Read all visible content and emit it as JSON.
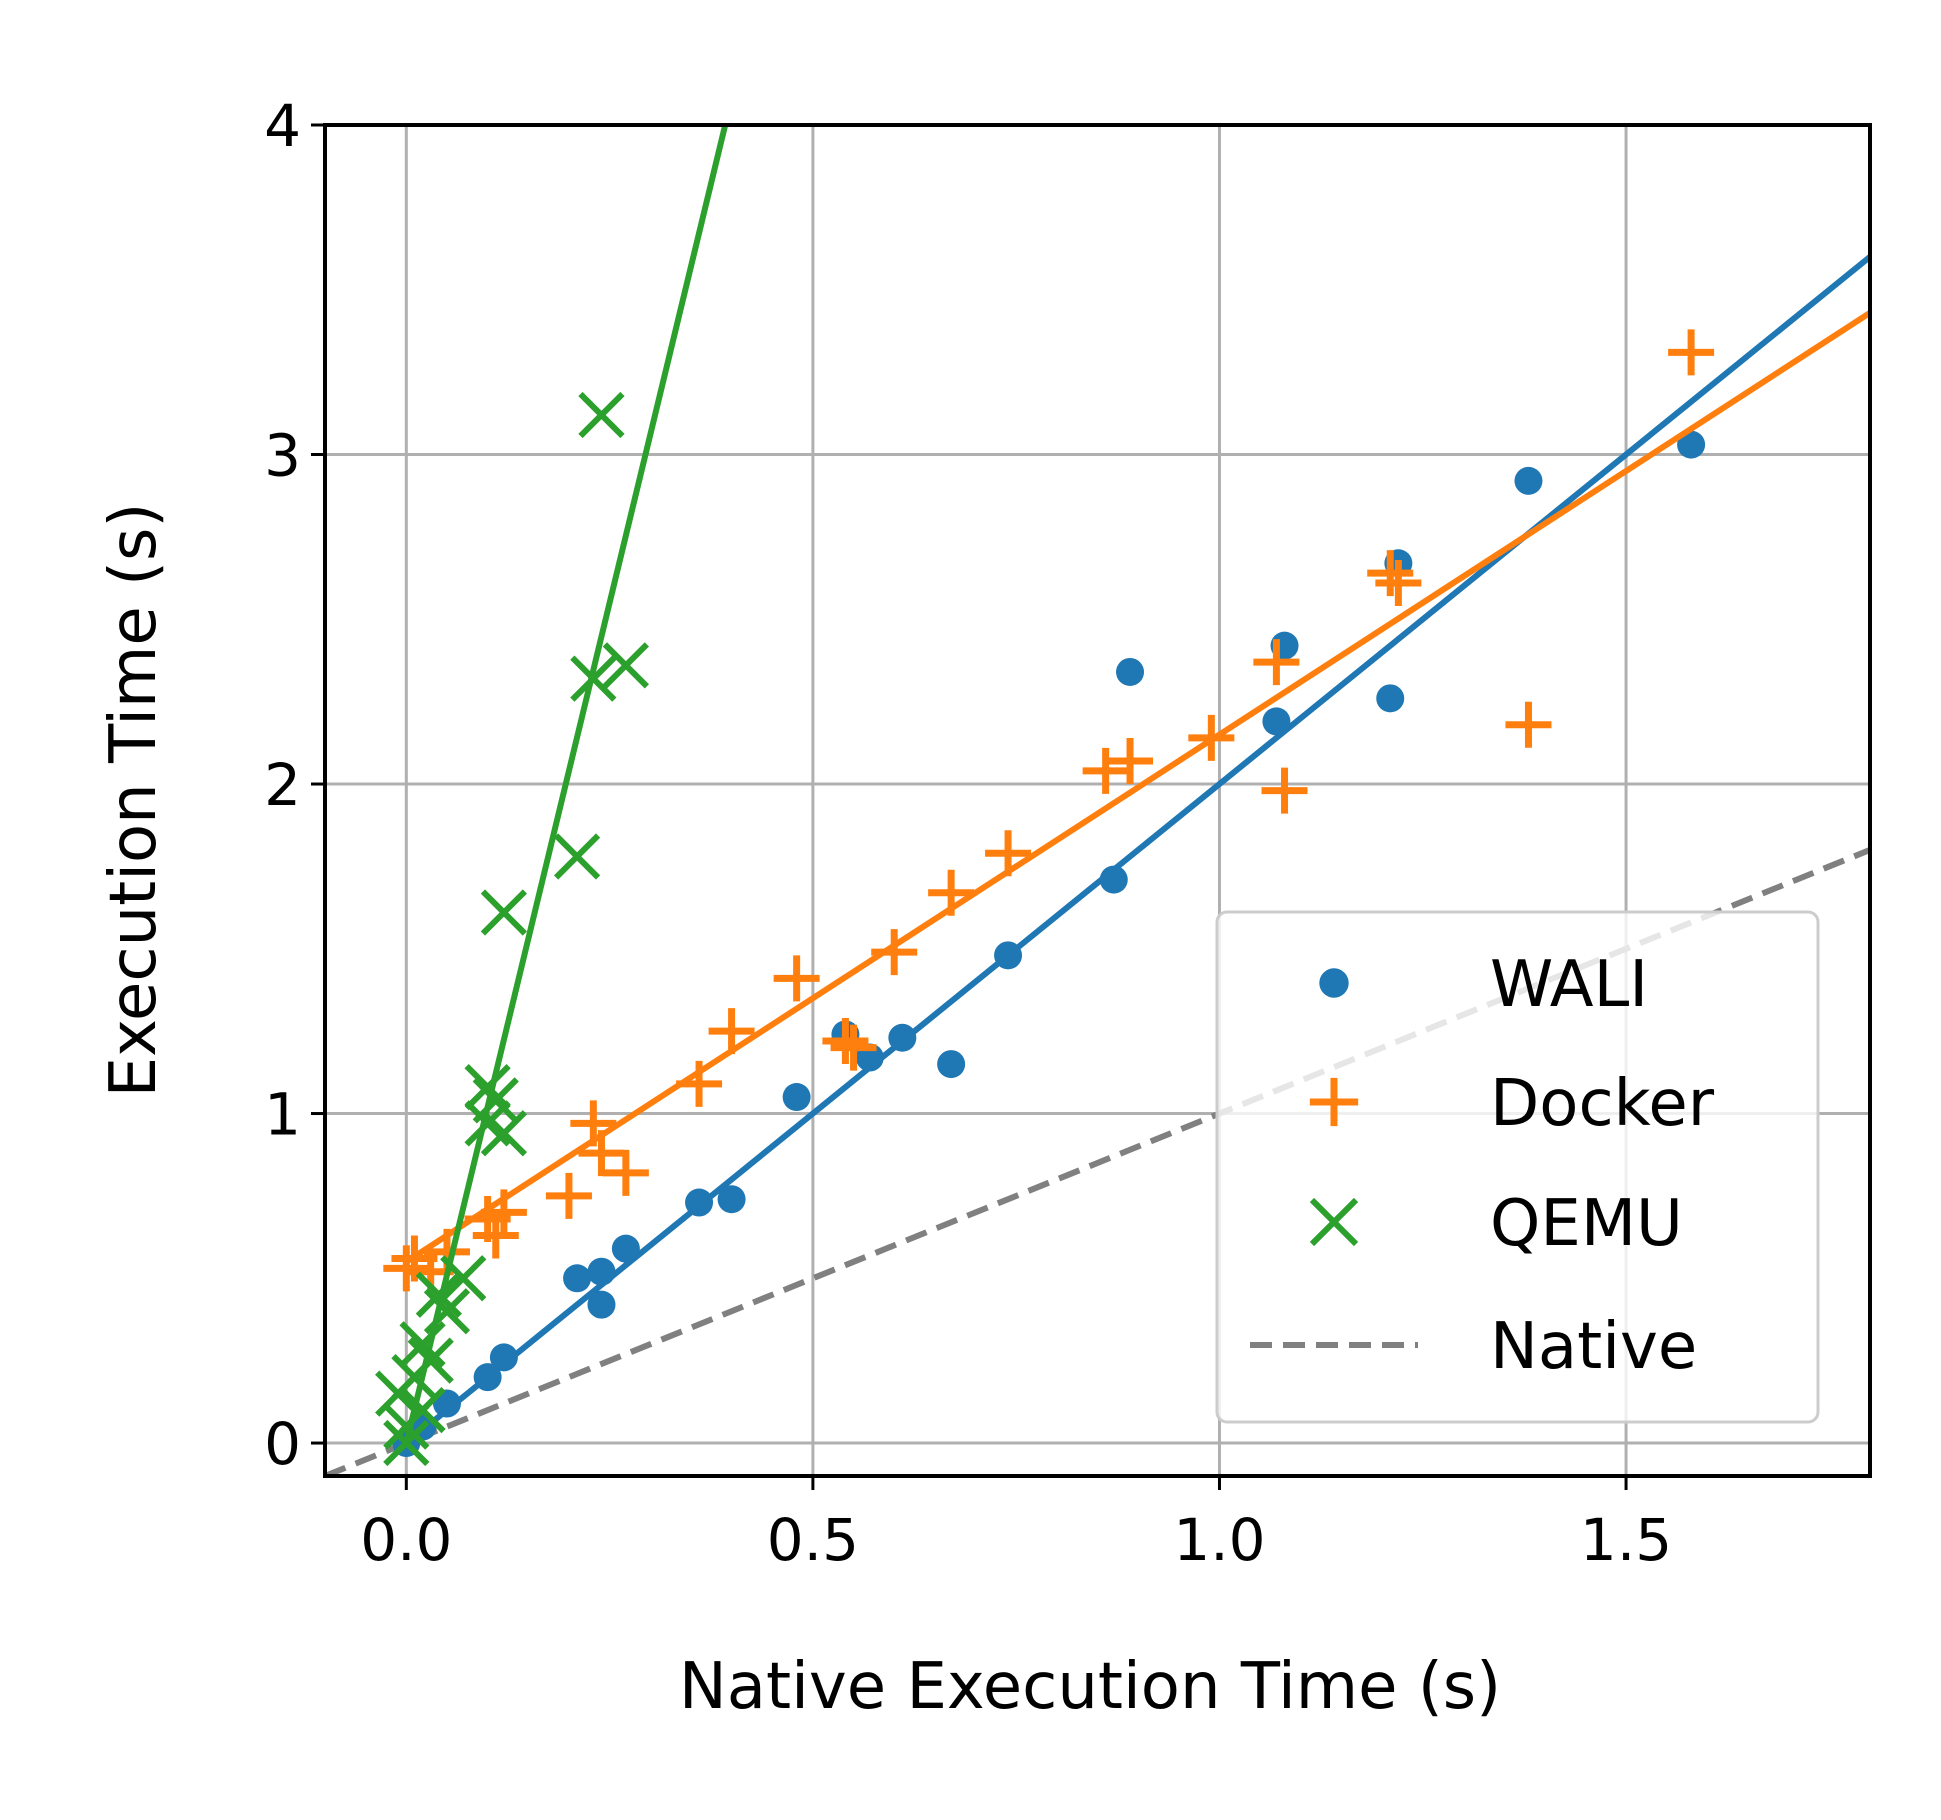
{
  "chart_data": {
    "type": "scatter",
    "xlabel": "Native Execution Time (s)",
    "ylabel": "Execution Time (s)",
    "xlim": [
      -0.1,
      1.8
    ],
    "ylim": [
      -0.1,
      4.0
    ],
    "x_ticks": [
      0.0,
      0.5,
      1.0,
      1.5
    ],
    "x_tick_labels": [
      "0.0",
      "0.5",
      "1.0",
      "1.5"
    ],
    "y_ticks": [
      0,
      1,
      2,
      3,
      4
    ],
    "y_tick_labels": [
      "0",
      "1",
      "2",
      "3",
      "4"
    ],
    "grid": true,
    "legend_position": "bottom-right",
    "colors": {
      "WALI": "#1f77b4",
      "Docker": "#ff7f0e",
      "QEMU": "#2ca02c",
      "Native": "#808080"
    },
    "series": [
      {
        "name": "WALI",
        "marker": "dot",
        "fit": {
          "slope": 2.0,
          "intercept": 0.0
        },
        "points": [
          [
            0.0,
            0.0
          ],
          [
            0.02,
            0.05
          ],
          [
            0.05,
            0.12
          ],
          [
            0.1,
            0.2
          ],
          [
            0.12,
            0.26
          ],
          [
            0.21,
            0.5
          ],
          [
            0.24,
            0.52
          ],
          [
            0.24,
            0.42
          ],
          [
            0.27,
            0.59
          ],
          [
            0.36,
            0.73
          ],
          [
            0.4,
            0.74
          ],
          [
            0.48,
            1.05
          ],
          [
            0.54,
            1.24
          ],
          [
            0.57,
            1.17
          ],
          [
            0.61,
            1.23
          ],
          [
            0.67,
            1.15
          ],
          [
            0.74,
            1.48
          ],
          [
            0.87,
            1.71
          ],
          [
            0.89,
            2.34
          ],
          [
            1.08,
            2.42
          ],
          [
            1.07,
            2.19
          ],
          [
            1.21,
            2.26
          ],
          [
            1.22,
            2.67
          ],
          [
            1.38,
            2.92
          ],
          [
            1.58,
            3.03
          ]
        ]
      },
      {
        "name": "Docker",
        "marker": "plus",
        "fit": {
          "slope": 1.6,
          "intercept": 0.55
        },
        "points": [
          [
            0.0,
            0.53
          ],
          [
            0.01,
            0.56
          ],
          [
            0.03,
            0.52
          ],
          [
            0.05,
            0.58
          ],
          [
            0.1,
            0.68
          ],
          [
            0.11,
            0.63
          ],
          [
            0.12,
            0.7
          ],
          [
            0.2,
            0.75
          ],
          [
            0.23,
            0.97
          ],
          [
            0.24,
            0.88
          ],
          [
            0.27,
            0.82
          ],
          [
            0.36,
            1.09
          ],
          [
            0.4,
            1.25
          ],
          [
            0.48,
            1.41
          ],
          [
            0.54,
            1.22
          ],
          [
            0.55,
            1.2
          ],
          [
            0.6,
            1.49
          ],
          [
            0.67,
            1.67
          ],
          [
            0.74,
            1.79
          ],
          [
            0.86,
            2.04
          ],
          [
            0.89,
            2.07
          ],
          [
            0.99,
            2.14
          ],
          [
            1.07,
            2.37
          ],
          [
            1.08,
            1.98
          ],
          [
            1.21,
            2.64
          ],
          [
            1.22,
            2.61
          ],
          [
            1.38,
            2.18
          ],
          [
            1.58,
            3.31
          ]
        ]
      },
      {
        "name": "QEMU",
        "marker": "x",
        "fit": {
          "slope": 10.2,
          "intercept": 0.0
        },
        "points": [
          [
            0.0,
            0.0
          ],
          [
            0.0,
            0.05
          ],
          [
            -0.01,
            0.15
          ],
          [
            0.01,
            0.2
          ],
          [
            0.02,
            0.1
          ],
          [
            0.02,
            0.3
          ],
          [
            0.03,
            0.25
          ],
          [
            0.04,
            0.45
          ],
          [
            0.05,
            0.4
          ],
          [
            0.07,
            0.5
          ],
          [
            0.1,
            0.97
          ],
          [
            0.1,
            1.08
          ],
          [
            0.11,
            1.04
          ],
          [
            0.12,
            0.94
          ],
          [
            0.12,
            1.61
          ],
          [
            0.21,
            1.78
          ],
          [
            0.23,
            2.32
          ],
          [
            0.27,
            2.36
          ],
          [
            0.24,
            3.12
          ]
        ]
      }
    ],
    "reference_line": {
      "name": "Native",
      "slope": 1.0,
      "intercept": 0.0,
      "style": "dashed"
    },
    "legend": [
      "WALI",
      "Docker",
      "QEMU",
      "Native"
    ]
  }
}
